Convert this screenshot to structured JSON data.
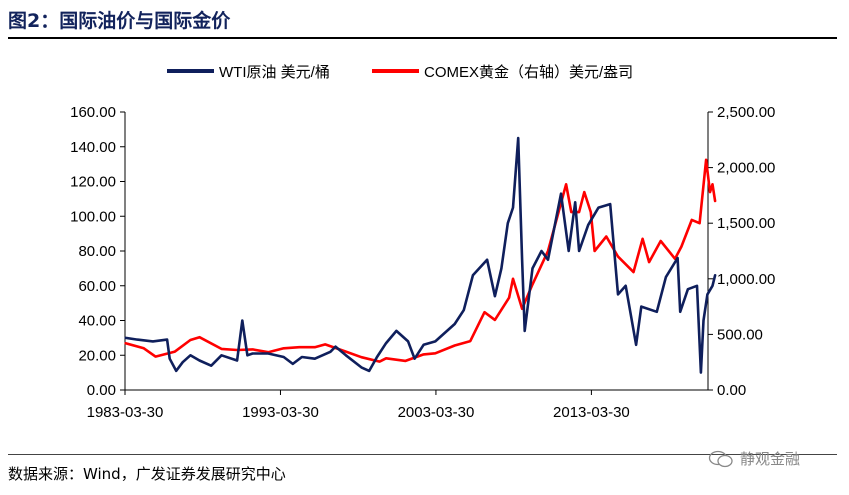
{
  "figure": {
    "title": "图2：国际油价与国际金价",
    "source": "数据来源：Wind，广发证券发展研究中心",
    "watermark": "静观金融"
  },
  "chart_data": {
    "type": "line",
    "x_tick_labels": [
      "1983-03-30",
      "1993-03-30",
      "2003-03-30",
      "2013-03-30"
    ],
    "x_range": [
      "1983-03-30",
      "2020-09-30"
    ],
    "y_left": {
      "range": [
        0,
        160
      ],
      "ticks": [
        "0.00",
        "20.00",
        "40.00",
        "60.00",
        "80.00",
        "100.00",
        "120.00",
        "140.00",
        "160.00"
      ]
    },
    "y_right": {
      "range": [
        0,
        2500
      ],
      "ticks": [
        "0.00",
        "500.00",
        "1,000.00",
        "1,500.00",
        "2,000.00",
        "2,500.00"
      ]
    },
    "legend_position": "top-center",
    "grid": false,
    "series": [
      {
        "name": "WTI原油 美元/桶",
        "axis": "left",
        "color": "#0f1f5c",
        "points": [
          [
            "1983-04",
            30
          ],
          [
            "1984-01",
            29
          ],
          [
            "1985-01",
            28
          ],
          [
            "1985-12",
            29
          ],
          [
            "1986-02",
            18
          ],
          [
            "1986-07",
            11
          ],
          [
            "1986-12",
            16
          ],
          [
            "1987-06",
            20
          ],
          [
            "1988-01",
            17
          ],
          [
            "1988-10",
            14
          ],
          [
            "1989-06",
            20
          ],
          [
            "1990-06",
            17
          ],
          [
            "1990-10",
            40
          ],
          [
            "1991-02",
            20
          ],
          [
            "1991-06",
            21
          ],
          [
            "1992-06",
            21
          ],
          [
            "1993-06",
            19
          ],
          [
            "1994-01",
            15
          ],
          [
            "1994-08",
            19
          ],
          [
            "1995-06",
            18
          ],
          [
            "1996-06",
            22
          ],
          [
            "1996-10",
            25
          ],
          [
            "1997-06",
            20
          ],
          [
            "1998-06",
            13
          ],
          [
            "1998-12",
            11
          ],
          [
            "1999-06",
            19
          ],
          [
            "2000-01",
            27
          ],
          [
            "2000-09",
            34
          ],
          [
            "2001-06",
            28
          ],
          [
            "2001-11",
            18
          ],
          [
            "2002-06",
            26
          ],
          [
            "2003-03",
            28
          ],
          [
            "2003-06",
            30
          ],
          [
            "2004-06",
            38
          ],
          [
            "2005-01",
            46
          ],
          [
            "2005-08",
            66
          ],
          [
            "2006-07",
            75
          ],
          [
            "2007-01",
            54
          ],
          [
            "2007-06",
            70
          ],
          [
            "2007-11",
            96
          ],
          [
            "2008-03",
            105
          ],
          [
            "2008-07",
            145
          ],
          [
            "2008-10",
            75
          ],
          [
            "2008-12",
            34
          ],
          [
            "2009-06",
            70
          ],
          [
            "2010-01",
            80
          ],
          [
            "2010-06",
            75
          ],
          [
            "2011-04",
            113
          ],
          [
            "2011-10",
            80
          ],
          [
            "2012-03",
            108
          ],
          [
            "2012-06",
            80
          ],
          [
            "2013-01",
            95
          ],
          [
            "2013-09",
            105
          ],
          [
            "2014-06",
            107
          ],
          [
            "2014-12",
            55
          ],
          [
            "2015-06",
            60
          ],
          [
            "2016-02",
            26
          ],
          [
            "2016-06",
            48
          ],
          [
            "2017-06",
            45
          ],
          [
            "2018-01",
            65
          ],
          [
            "2018-10",
            76
          ],
          [
            "2018-12",
            45
          ],
          [
            "2019-06",
            58
          ],
          [
            "2020-01",
            60
          ],
          [
            "2020-04",
            10
          ],
          [
            "2020-06",
            40
          ],
          [
            "2020-09",
            55
          ],
          [
            "2021-01",
            60
          ],
          [
            "2021-03",
            66
          ]
        ]
      },
      {
        "name": "COMEX黄金（右轴）美元/盎司",
        "axis": "right",
        "color": "#ff0000",
        "points": [
          [
            "1983-04",
            420
          ],
          [
            "1984-06",
            375
          ],
          [
            "1985-03",
            300
          ],
          [
            "1986-06",
            345
          ],
          [
            "1987-06",
            450
          ],
          [
            "1988-01",
            475
          ],
          [
            "1989-06",
            370
          ],
          [
            "1990-06",
            360
          ],
          [
            "1991-06",
            365
          ],
          [
            "1992-06",
            340
          ],
          [
            "1993-06",
            375
          ],
          [
            "1994-06",
            385
          ],
          [
            "1995-06",
            385
          ],
          [
            "1996-02",
            410
          ],
          [
            "1997-06",
            345
          ],
          [
            "1998-06",
            295
          ],
          [
            "1999-08",
            255
          ],
          [
            "2000-01",
            285
          ],
          [
            "2001-04",
            262
          ],
          [
            "2002-06",
            320
          ],
          [
            "2003-03",
            330
          ],
          [
            "2004-06",
            400
          ],
          [
            "2005-06",
            440
          ],
          [
            "2006-05",
            700
          ],
          [
            "2007-01",
            630
          ],
          [
            "2007-12",
            830
          ],
          [
            "2008-03",
            1000
          ],
          [
            "2008-10",
            730
          ],
          [
            "2009-06",
            950
          ],
          [
            "2010-06",
            1250
          ],
          [
            "2011-08",
            1850
          ],
          [
            "2011-12",
            1600
          ],
          [
            "2012-06",
            1600
          ],
          [
            "2012-10",
            1780
          ],
          [
            "2013-03",
            1600
          ],
          [
            "2013-06",
            1250
          ],
          [
            "2014-03",
            1380
          ],
          [
            "2014-12",
            1200
          ],
          [
            "2015-12",
            1060
          ],
          [
            "2016-07",
            1360
          ],
          [
            "2016-12",
            1150
          ],
          [
            "2017-09",
            1340
          ],
          [
            "2018-08",
            1180
          ],
          [
            "2019-01",
            1290
          ],
          [
            "2019-09",
            1530
          ],
          [
            "2020-03",
            1500
          ],
          [
            "2020-08",
            2070
          ],
          [
            "2020-11",
            1780
          ],
          [
            "2021-01",
            1850
          ],
          [
            "2021-03",
            1700
          ]
        ]
      }
    ]
  }
}
